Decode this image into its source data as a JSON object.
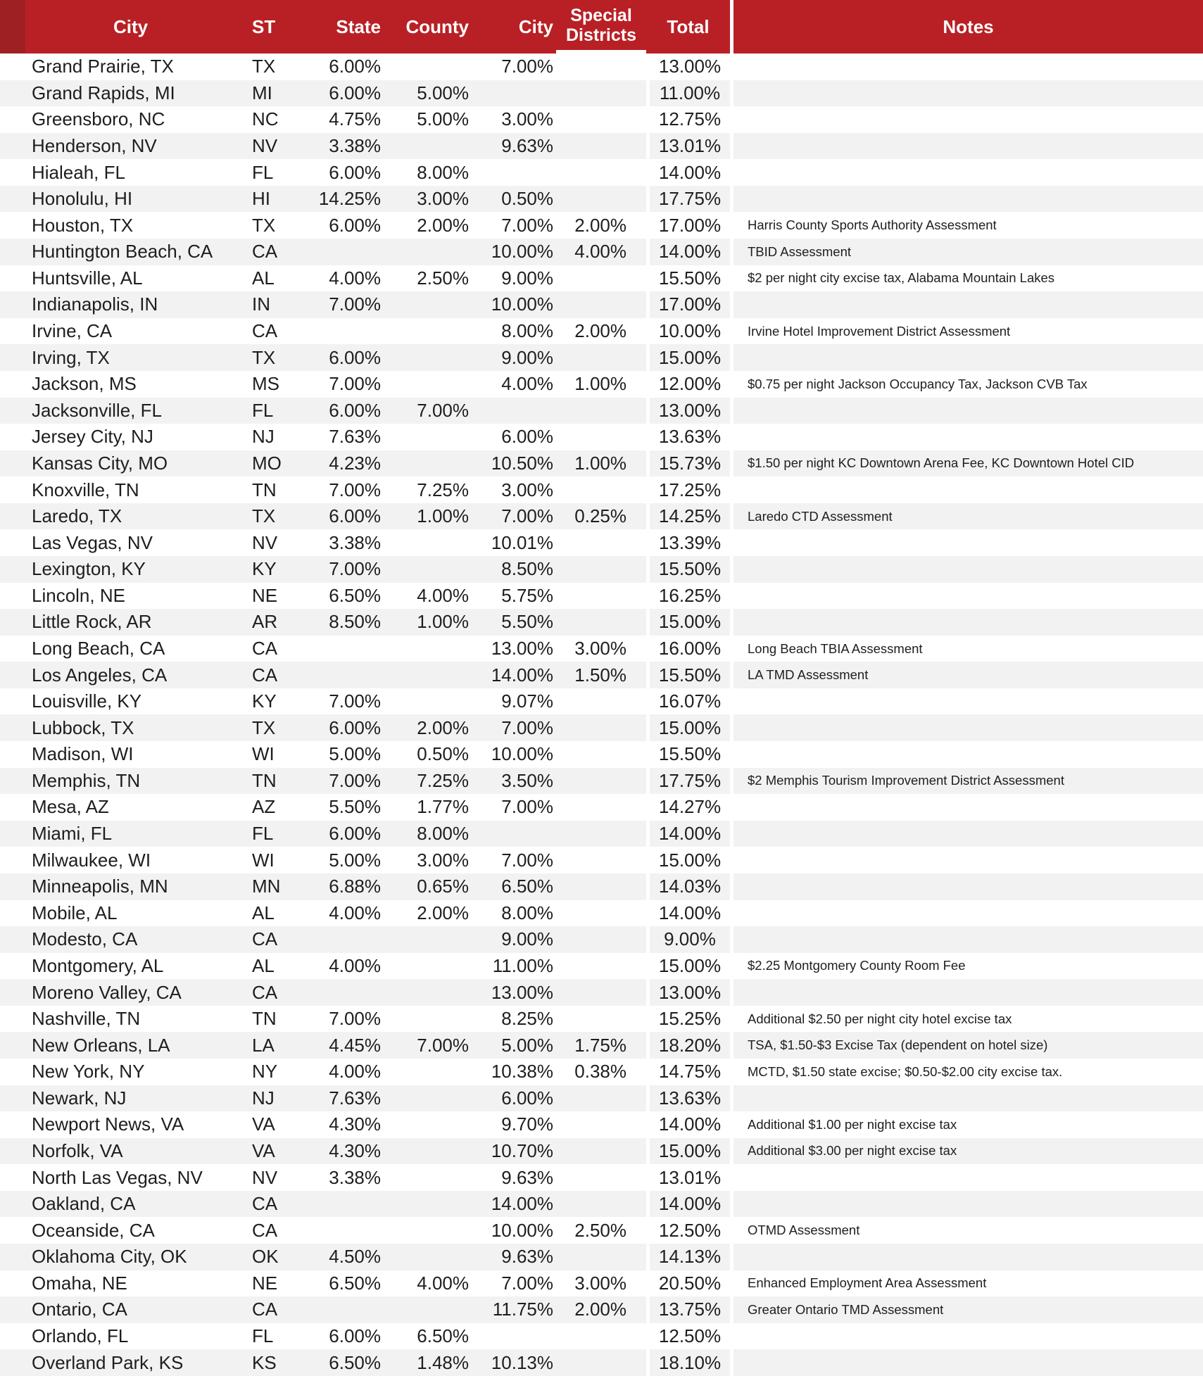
{
  "colors": {
    "header_red": "#B92025",
    "header_dark_red": "#9E2023",
    "row_stripe_gray": "#F2F2F2",
    "row_white": "#FFFFFF",
    "body_text": "#1E1E1E",
    "header_text": "#FFFFFF"
  },
  "chart_data": {
    "type": "table",
    "title": "City lodging tax rates table",
    "legend": "none",
    "grid": "striped-rows",
    "columns": [
      "City",
      "ST",
      "State",
      "County",
      "City",
      "Special Districts",
      "Total",
      "Notes"
    ],
    "rows": [
      [
        "Grand Prairie, TX",
        "TX",
        "6.00%",
        "",
        "7.00%",
        "",
        "13.00%",
        ""
      ],
      [
        "Grand Rapids, MI",
        "MI",
        "6.00%",
        "5.00%",
        "",
        "",
        "11.00%",
        ""
      ],
      [
        "Greensboro, NC",
        "NC",
        "4.75%",
        "5.00%",
        "3.00%",
        "",
        "12.75%",
        ""
      ],
      [
        "Henderson, NV",
        "NV",
        "3.38%",
        "",
        "9.63%",
        "",
        "13.01%",
        ""
      ],
      [
        "Hialeah, FL",
        "FL",
        "6.00%",
        "8.00%",
        "",
        "",
        "14.00%",
        ""
      ],
      [
        "Honolulu, HI",
        "HI",
        "14.25%",
        "3.00%",
        "0.50%",
        "",
        "17.75%",
        ""
      ],
      [
        "Houston, TX",
        "TX",
        "6.00%",
        "2.00%",
        "7.00%",
        "2.00%",
        "17.00%",
        "Harris County Sports Authority Assessment"
      ],
      [
        "Huntington Beach, CA",
        "CA",
        "",
        "",
        "10.00%",
        "4.00%",
        "14.00%",
        "TBID Assessment"
      ],
      [
        "Huntsville, AL",
        "AL",
        "4.00%",
        "2.50%",
        "9.00%",
        "",
        "15.50%",
        "$2 per night city excise tax, Alabama Mountain Lakes"
      ],
      [
        "Indianapolis, IN",
        "IN",
        "7.00%",
        "",
        "10.00%",
        "",
        "17.00%",
        ""
      ],
      [
        "Irvine, CA",
        "CA",
        "",
        "",
        "8.00%",
        "2.00%",
        "10.00%",
        "Irvine Hotel Improvement District Assessment"
      ],
      [
        "Irving, TX",
        "TX",
        "6.00%",
        "",
        "9.00%",
        "",
        "15.00%",
        ""
      ],
      [
        "Jackson, MS",
        "MS",
        "7.00%",
        "",
        "4.00%",
        "1.00%",
        "12.00%",
        "$0.75 per night Jackson Occupancy Tax, Jackson CVB Tax"
      ],
      [
        "Jacksonville, FL",
        "FL",
        "6.00%",
        "7.00%",
        "",
        "",
        "13.00%",
        ""
      ],
      [
        "Jersey City, NJ",
        "NJ",
        "7.63%",
        "",
        "6.00%",
        "",
        "13.63%",
        ""
      ],
      [
        "Kansas City, MO",
        "MO",
        "4.23%",
        "",
        "10.50%",
        "1.00%",
        "15.73%",
        "$1.50 per night KC Downtown Arena Fee, KC Downtown Hotel CID"
      ],
      [
        "Knoxville, TN",
        "TN",
        "7.00%",
        "7.25%",
        "3.00%",
        "",
        "17.25%",
        ""
      ],
      [
        "Laredo, TX",
        "TX",
        "6.00%",
        "1.00%",
        "7.00%",
        "0.25%",
        "14.25%",
        "Laredo CTD Assessment"
      ],
      [
        "Las Vegas, NV",
        "NV",
        "3.38%",
        "",
        "10.01%",
        "",
        "13.39%",
        ""
      ],
      [
        "Lexington, KY",
        "KY",
        "7.00%",
        "",
        "8.50%",
        "",
        "15.50%",
        ""
      ],
      [
        "Lincoln, NE",
        "NE",
        "6.50%",
        "4.00%",
        "5.75%",
        "",
        "16.25%",
        ""
      ],
      [
        "Little Rock, AR",
        "AR",
        "8.50%",
        "1.00%",
        "5.50%",
        "",
        "15.00%",
        ""
      ],
      [
        "Long Beach, CA",
        "CA",
        "",
        "",
        "13.00%",
        "3.00%",
        "16.00%",
        "Long Beach TBIA Assessment"
      ],
      [
        "Los Angeles, CA",
        "CA",
        "",
        "",
        "14.00%",
        "1.50%",
        "15.50%",
        "LA TMD Assessment"
      ],
      [
        "Louisville, KY",
        "KY",
        "7.00%",
        "",
        "9.07%",
        "",
        "16.07%",
        ""
      ],
      [
        "Lubbock, TX",
        "TX",
        "6.00%",
        "2.00%",
        "7.00%",
        "",
        "15.00%",
        ""
      ],
      [
        "Madison, WI",
        "WI",
        "5.00%",
        "0.50%",
        "10.00%",
        "",
        "15.50%",
        ""
      ],
      [
        "Memphis, TN",
        "TN",
        "7.00%",
        "7.25%",
        "3.50%",
        "",
        "17.75%",
        "$2 Memphis Tourism Improvement District Assessment"
      ],
      [
        "Mesa, AZ",
        "AZ",
        "5.50%",
        "1.77%",
        "7.00%",
        "",
        "14.27%",
        ""
      ],
      [
        "Miami, FL",
        "FL",
        "6.00%",
        "8.00%",
        "",
        "",
        "14.00%",
        ""
      ],
      [
        "Milwaukee, WI",
        "WI",
        "5.00%",
        "3.00%",
        "7.00%",
        "",
        "15.00%",
        ""
      ],
      [
        "Minneapolis, MN",
        "MN",
        "6.88%",
        "0.65%",
        "6.50%",
        "",
        "14.03%",
        ""
      ],
      [
        "Mobile, AL",
        "AL",
        "4.00%",
        "2.00%",
        "8.00%",
        "",
        "14.00%",
        ""
      ],
      [
        "Modesto, CA",
        "CA",
        "",
        "",
        "9.00%",
        "",
        "9.00%",
        ""
      ],
      [
        "Montgomery, AL",
        "AL",
        "4.00%",
        "",
        "11.00%",
        "",
        "15.00%",
        "$2.25 Montgomery County Room Fee"
      ],
      [
        "Moreno Valley, CA",
        "CA",
        "",
        "",
        "13.00%",
        "",
        "13.00%",
        ""
      ],
      [
        "Nashville, TN",
        "TN",
        "7.00%",
        "",
        "8.25%",
        "",
        "15.25%",
        "Additional $2.50 per night city hotel excise tax"
      ],
      [
        "New Orleans, LA",
        "LA",
        "4.45%",
        "7.00%",
        "5.00%",
        "1.75%",
        "18.20%",
        "TSA, $1.50-$3 Excise Tax (dependent on hotel size)"
      ],
      [
        "New York, NY",
        "NY",
        "4.00%",
        "",
        "10.38%",
        "0.38%",
        "14.75%",
        "MCTD, $1.50 state excise; $0.50-$2.00 city excise tax."
      ],
      [
        "Newark, NJ",
        "NJ",
        "7.63%",
        "",
        "6.00%",
        "",
        "13.63%",
        ""
      ],
      [
        "Newport News, VA",
        "VA",
        "4.30%",
        "",
        "9.70%",
        "",
        "14.00%",
        "Additional $1.00 per night excise tax"
      ],
      [
        "Norfolk, VA",
        "VA",
        "4.30%",
        "",
        "10.70%",
        "",
        "15.00%",
        "Additional $3.00 per night excise tax"
      ],
      [
        "North Las Vegas, NV",
        "NV",
        "3.38%",
        "",
        "9.63%",
        "",
        "13.01%",
        ""
      ],
      [
        "Oakland, CA",
        "CA",
        "",
        "",
        "14.00%",
        "",
        "14.00%",
        ""
      ],
      [
        "Oceanside, CA",
        "CA",
        "",
        "",
        "10.00%",
        "2.50%",
        "12.50%",
        "OTMD Assessment"
      ],
      [
        "Oklahoma City, OK",
        "OK",
        "4.50%",
        "",
        "9.63%",
        "",
        "14.13%",
        ""
      ],
      [
        "Omaha, NE",
        "NE",
        "6.50%",
        "4.00%",
        "7.00%",
        "3.00%",
        "20.50%",
        "Enhanced Employment Area Assessment"
      ],
      [
        "Ontario, CA",
        "CA",
        "",
        "",
        "11.75%",
        "2.00%",
        "13.75%",
        "Greater Ontario TMD Assessment"
      ],
      [
        "Orlando, FL",
        "FL",
        "6.00%",
        "6.50%",
        "",
        "",
        "12.50%",
        ""
      ],
      [
        "Overland Park, KS",
        "KS",
        "6.50%",
        "1.48%",
        "10.13%",
        "",
        "18.10%",
        ""
      ]
    ]
  }
}
